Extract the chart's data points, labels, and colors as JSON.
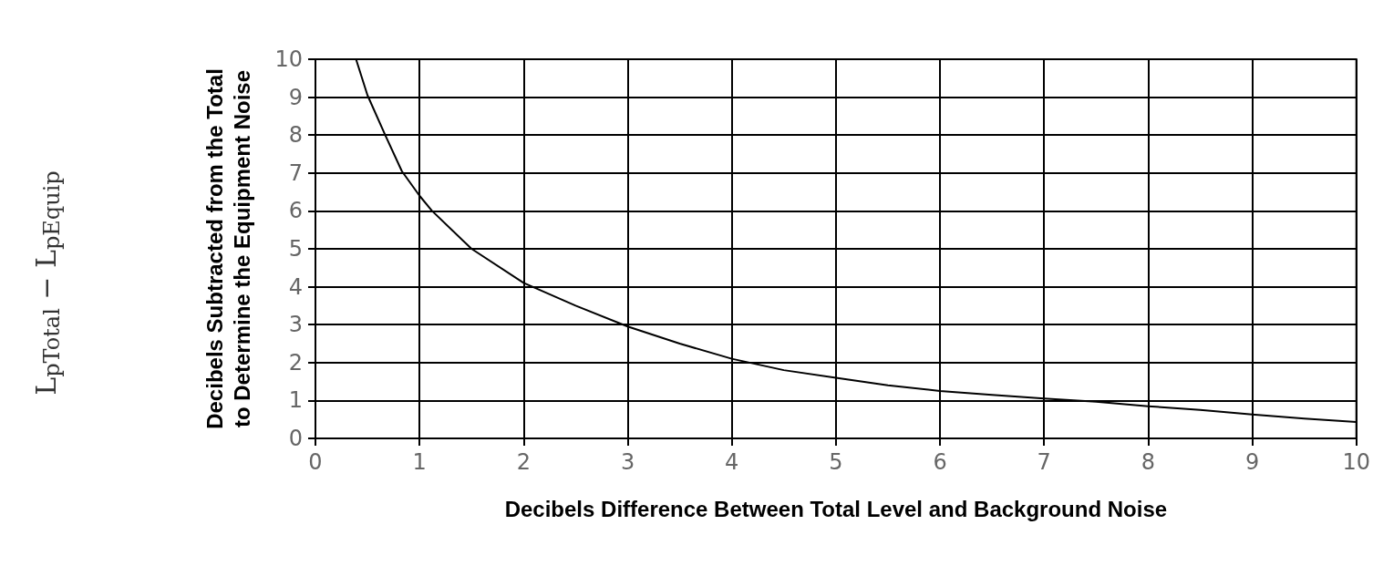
{
  "chart_data": {
    "type": "line",
    "xlabel": "Decibels Difference Between Total Level and Background Noise",
    "ylabel": "Decibels Subtracted from the Total\nto Determine the Equipment Noise",
    "annotations": [
      "L$_{pTotal}$ − L$_{pEquip}$"
    ],
    "series": [
      {
        "color": "#000000",
        "x": [
          0.39,
          0.5,
          0.67,
          0.83,
          1,
          1.12,
          1.5,
          2,
          2.5,
          3,
          3.5,
          4,
          4.5,
          5,
          5.5,
          6,
          6.5,
          7,
          7.5,
          8,
          8.5,
          9,
          9.5,
          10
        ],
        "values": [
          10,
          9.05,
          8,
          7.05,
          6.4,
          6.0,
          5.0,
          4.1,
          3.5,
          2.95,
          2.5,
          2.1,
          1.8,
          1.6,
          1.4,
          1.25,
          1.15,
          1.05,
          0.97,
          0.85,
          0.75,
          0.63,
          0.52,
          0.43
        ]
      }
    ],
    "xlim": [
      0,
      10
    ],
    "xticks": [
      0,
      1,
      2,
      3,
      4,
      5,
      6,
      7,
      8,
      9,
      10
    ],
    "ylim": [
      0,
      10
    ],
    "yticks": [
      0,
      1,
      2,
      3,
      4,
      5,
      6,
      7,
      8,
      9,
      10
    ],
    "grid": true,
    "marker": "none",
    "line_style": "solid"
  }
}
